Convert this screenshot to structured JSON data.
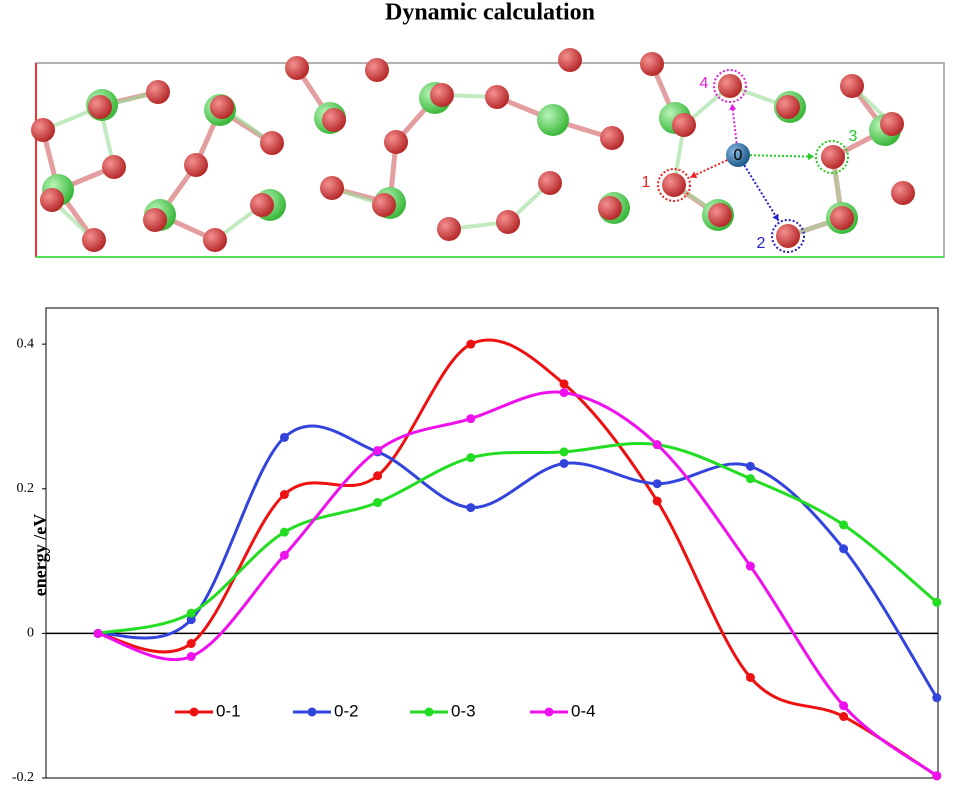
{
  "chart_data": {
    "type": "line",
    "title": "Dynamic calculation",
    "ylabel": "energy /eV",
    "structure_labels": [
      "0",
      "1",
      "2",
      "3",
      "4"
    ],
    "categories": [
      null,
      null,
      null,
      null,
      null,
      null,
      null,
      null,
      null,
      null
    ],
    "series": [
      {
        "name": "0-1",
        "color": "#ee1111",
        "values": [
          0,
          -0.014,
          0.192,
          0.218,
          0.4,
          0.345,
          0.183,
          -0.061,
          -0.115,
          -0.197
        ]
      },
      {
        "name": "0-2",
        "color": "#3344dd",
        "values": [
          0,
          0.019,
          0.271,
          0.251,
          0.174,
          0.235,
          0.207,
          0.231,
          0.117,
          -0.089
        ]
      },
      {
        "name": "0-3",
        "color": "#22dd22",
        "values": [
          0,
          0.028,
          0.14,
          0.181,
          0.243,
          0.251,
          0.261,
          0.214,
          0.15,
          0.043
        ]
      },
      {
        "name": "0-4",
        "color": "#ee11ee",
        "values": [
          0,
          -0.032,
          0.108,
          0.253,
          0.297,
          0.333,
          0.261,
          0.093,
          -0.1,
          -0.197
        ]
      }
    ],
    "ylim": [
      -0.2,
      0.45
    ],
    "yticks": [
      -0.2,
      0,
      0.2,
      0.4
    ],
    "legend": "lower left"
  }
}
